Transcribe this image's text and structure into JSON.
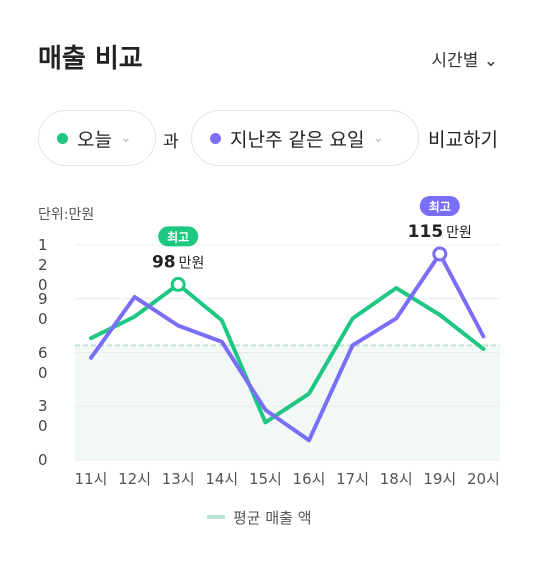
{
  "header": {
    "title": "매출 비교",
    "view": "시간별"
  },
  "filters": {
    "first": "오늘",
    "joiner": "과",
    "second": "지난주 같은 요일",
    "action": "비교하기"
  },
  "chart_data": {
    "type": "line",
    "unit_label": "단위:만원",
    "peak_badge": "최고",
    "peak_unit": "만원",
    "categories": [
      "11시",
      "12시",
      "13시",
      "14시",
      "15시",
      "16시",
      "17시",
      "18시",
      "19시",
      "20시"
    ],
    "series": [
      {
        "name": "오늘",
        "color": "#1ec882",
        "values": [
          68,
          80,
          98,
          78,
          21,
          37,
          79,
          96,
          81,
          62
        ]
      },
      {
        "name": "지난주 같은 요일",
        "color": "#7b6ef6",
        "values": [
          57,
          91,
          75,
          66,
          28,
          11,
          64,
          79,
          115,
          69
        ]
      }
    ],
    "average": {
      "name": "평균 매출 액",
      "value": 64,
      "color": "#b9e6d3"
    },
    "ylim": [
      0,
      120
    ],
    "yticks": [
      0,
      30,
      60,
      90,
      120
    ],
    "grid": true
  }
}
